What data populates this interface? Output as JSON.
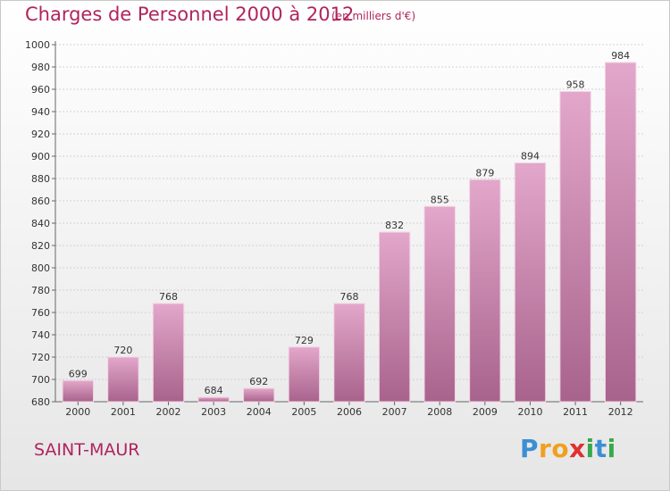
{
  "header": {
    "title": "Charges de Personnel 2000 à 2012",
    "subtitle": "(en milliers d'€)"
  },
  "footer": {
    "city": "SAINT-MAUR",
    "logo_letters": [
      "P",
      "r",
      "o",
      "x",
      "i",
      "t",
      "i"
    ]
  },
  "colors": {
    "title": "#b0245c",
    "bar_top": "#e3a7cb",
    "bar_bottom": "#a8638c",
    "logo": [
      "#3b8fd4",
      "#f0a020",
      "#f0a020",
      "#e03030",
      "#3aa84a",
      "#3b8fd4",
      "#3aa84a"
    ]
  },
  "chart_data": {
    "type": "bar",
    "title": "Charges de Personnel 2000 à 2012",
    "subtitle": "(en milliers d'€)",
    "xlabel": "",
    "ylabel": "",
    "categories": [
      "2000",
      "2001",
      "2002",
      "2003",
      "2004",
      "2005",
      "2006",
      "2007",
      "2008",
      "2009",
      "2010",
      "2011",
      "2012"
    ],
    "values": [
      699,
      720,
      768,
      684,
      692,
      729,
      768,
      832,
      855,
      879,
      894,
      958,
      984
    ],
    "ylim": [
      680,
      1000
    ],
    "yticks": [
      680,
      700,
      720,
      740,
      760,
      780,
      800,
      820,
      840,
      860,
      880,
      900,
      920,
      940,
      960,
      980,
      1000
    ],
    "grid": true,
    "legend": "none"
  }
}
